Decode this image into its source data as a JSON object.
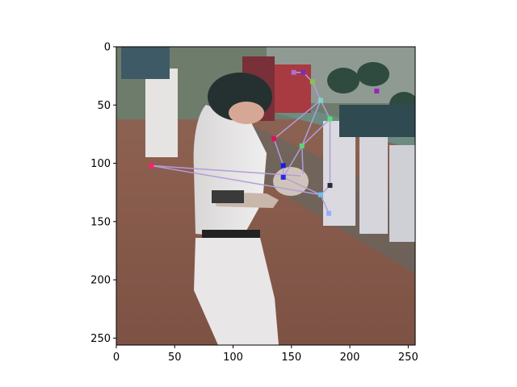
{
  "chart_data": {
    "type": "scatter",
    "title": "",
    "xlabel": "",
    "ylabel": "",
    "xlim": [
      0,
      256
    ],
    "ylim": [
      256,
      0
    ],
    "x_ticks": [
      0,
      50,
      100,
      150,
      200,
      250
    ],
    "y_ticks": [
      0,
      50,
      100,
      150,
      200,
      250
    ],
    "x_tick_labels": [
      "0",
      "50",
      "100",
      "150",
      "200",
      "250"
    ],
    "y_tick_labels": [
      "0",
      "50",
      "100",
      "150",
      "200",
      "250"
    ],
    "grid": false,
    "legend": "none",
    "background_image": "baseball player in batting helmet and white uniform looking down at gloves, teammates in green caps leaning on dugout railing",
    "edge_color": "#b39ddb",
    "points": [
      {
        "x": 152,
        "y": 22,
        "color": "#b36bd6"
      },
      {
        "x": 160,
        "y": 22,
        "color": "#7b2cbf"
      },
      {
        "x": 168,
        "y": 30,
        "color": "#8bc34a"
      },
      {
        "x": 175,
        "y": 46,
        "color": "#7fd7c9"
      },
      {
        "x": 183,
        "y": 62,
        "color": "#55e07a"
      },
      {
        "x": 135,
        "y": 79,
        "color": "#e0105a"
      },
      {
        "x": 159,
        "y": 85,
        "color": "#5cd67a"
      },
      {
        "x": 143,
        "y": 102,
        "color": "#1a1ae6"
      },
      {
        "x": 143,
        "y": 112,
        "color": "#2a2ae0"
      },
      {
        "x": 160,
        "y": 111,
        "color": "#c8c8c8"
      },
      {
        "x": 183,
        "y": 119,
        "color": "#2a2a3a"
      },
      {
        "x": 175,
        "y": 127,
        "color": "#6cc0e8"
      },
      {
        "x": 182,
        "y": 143,
        "color": "#8fb0ff"
      },
      {
        "x": 30,
        "y": 102,
        "color": "#ff1f6b"
      },
      {
        "x": 223,
        "y": 38,
        "color": "#a020c0"
      }
    ],
    "edges": [
      [
        0,
        1
      ],
      [
        1,
        2
      ],
      [
        2,
        3
      ],
      [
        3,
        4
      ],
      [
        4,
        6
      ],
      [
        3,
        5
      ],
      [
        5,
        7
      ],
      [
        7,
        8
      ],
      [
        6,
        8
      ],
      [
        6,
        9
      ],
      [
        4,
        10
      ],
      [
        10,
        11
      ],
      [
        8,
        11
      ],
      [
        11,
        12
      ],
      [
        9,
        13
      ],
      [
        13,
        11
      ],
      [
        3,
        6
      ]
    ]
  }
}
